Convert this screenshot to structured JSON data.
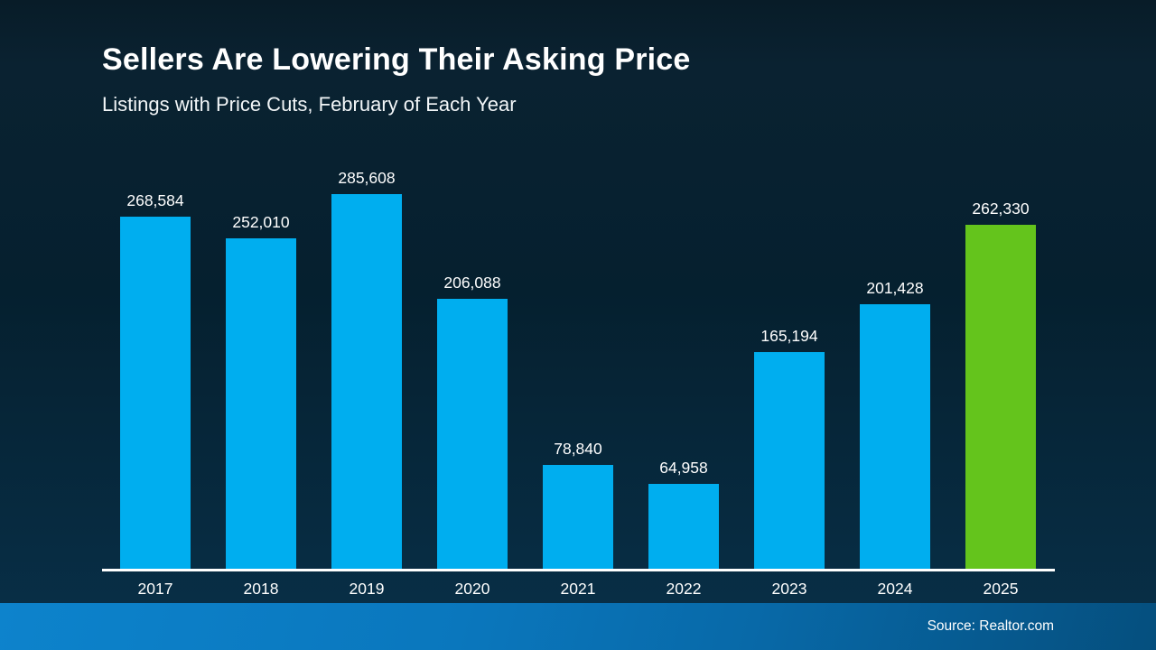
{
  "header": {
    "title": "Sellers Are Lowering Their Asking Price",
    "subtitle": "Listings with Price Cuts, February of Each Year"
  },
  "footer": {
    "source": "Source: Realtor.com"
  },
  "chart_data": {
    "type": "bar",
    "title": "Sellers Are Lowering Their Asking Price",
    "subtitle": "Listings with Price Cuts, February of Each Year",
    "categories": [
      "2017",
      "2018",
      "2019",
      "2020",
      "2021",
      "2022",
      "2023",
      "2024",
      "2025"
    ],
    "values": [
      268584,
      252010,
      285608,
      206088,
      78840,
      64958,
      165194,
      201428,
      262330
    ],
    "value_labels": [
      "268,584",
      "252,010",
      "285,608",
      "206,088",
      "78,840",
      "64,958",
      "165,194",
      "201,428",
      "262,330"
    ],
    "xlabel": "",
    "ylabel": "",
    "ylim": [
      0,
      285608
    ],
    "grid": false,
    "legend": false,
    "bar_color_default": "#00AEEF",
    "bar_color_highlight": "#64C41C",
    "highlight_category": "2025",
    "axis_line_color": "#FFFFFF",
    "label_color": "#FFFFFF"
  },
  "colors": {
    "background_top": "#0A2231",
    "background_bottom": "#083049",
    "footer_band_left": "#0D83CC",
    "footer_band_right": "#054F7E",
    "text": "#FFFFFF"
  }
}
